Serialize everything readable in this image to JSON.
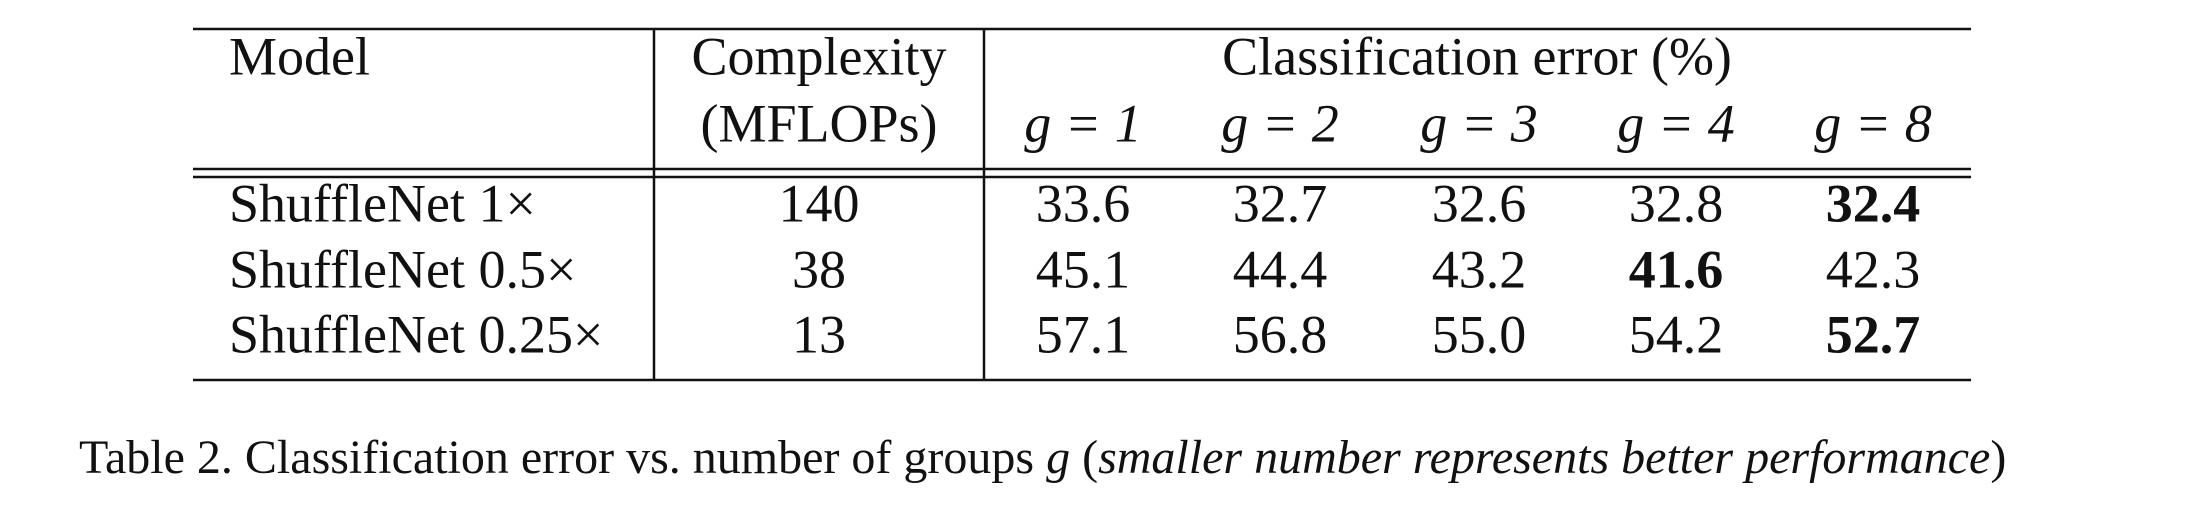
{
  "table": {
    "header": {
      "model": "Model",
      "complexity": [
        "Complexity",
        "(MFLOPs)"
      ],
      "group": "Classification error (%)",
      "columns": [
        "g = 1",
        "g = 2",
        "g = 3",
        "g = 4",
        "g = 8"
      ]
    },
    "rows": [
      {
        "model": "ShuffleNet 1×",
        "complexity": "140",
        "errors": [
          "33.6",
          "32.7",
          "32.6",
          "32.8",
          "32.4"
        ],
        "bold": [
          false,
          false,
          false,
          false,
          true
        ]
      },
      {
        "model": "ShuffleNet 0.5×",
        "complexity": "38",
        "errors": [
          "45.1",
          "44.4",
          "43.2",
          "41.6",
          "42.3"
        ],
        "bold": [
          false,
          false,
          false,
          true,
          false
        ]
      },
      {
        "model": "ShuffleNet 0.25×",
        "complexity": "13",
        "errors": [
          "57.1",
          "56.8",
          "55.0",
          "54.2",
          "52.7"
        ],
        "bold": [
          false,
          false,
          false,
          false,
          true
        ]
      }
    ]
  },
  "caption": [
    {
      "text": "Table 2. Classification error vs. number of groups ",
      "italic": false
    },
    {
      "text": "g",
      "italic": true
    },
    {
      "text": " (",
      "italic": false
    },
    {
      "text": "smaller number represents better performance",
      "italic": true
    },
    {
      "text": ")",
      "italic": false
    }
  ]
}
